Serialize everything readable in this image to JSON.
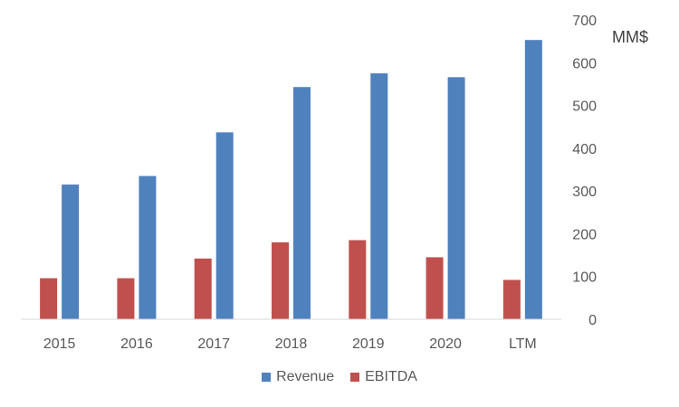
{
  "chart_data": {
    "type": "bar",
    "categories": [
      "2015",
      "2016",
      "2017",
      "2018",
      "2019",
      "2020",
      "LTM"
    ],
    "series": [
      {
        "name": "Revenue",
        "color": "#4F81BD",
        "values": [
          315,
          335,
          437,
          543,
          575,
          566,
          653
        ]
      },
      {
        "name": "EBITDA",
        "color": "#C0504D",
        "values": [
          96,
          96,
          142,
          180,
          185,
          145,
          92
        ]
      }
    ],
    "unit_label": "MM$",
    "ylim": [
      0,
      700
    ],
    "yticks": [
      0,
      100,
      200,
      300,
      400,
      500,
      600,
      700
    ],
    "y_axis_position": "right",
    "grid": false,
    "legend_position": "bottom"
  }
}
